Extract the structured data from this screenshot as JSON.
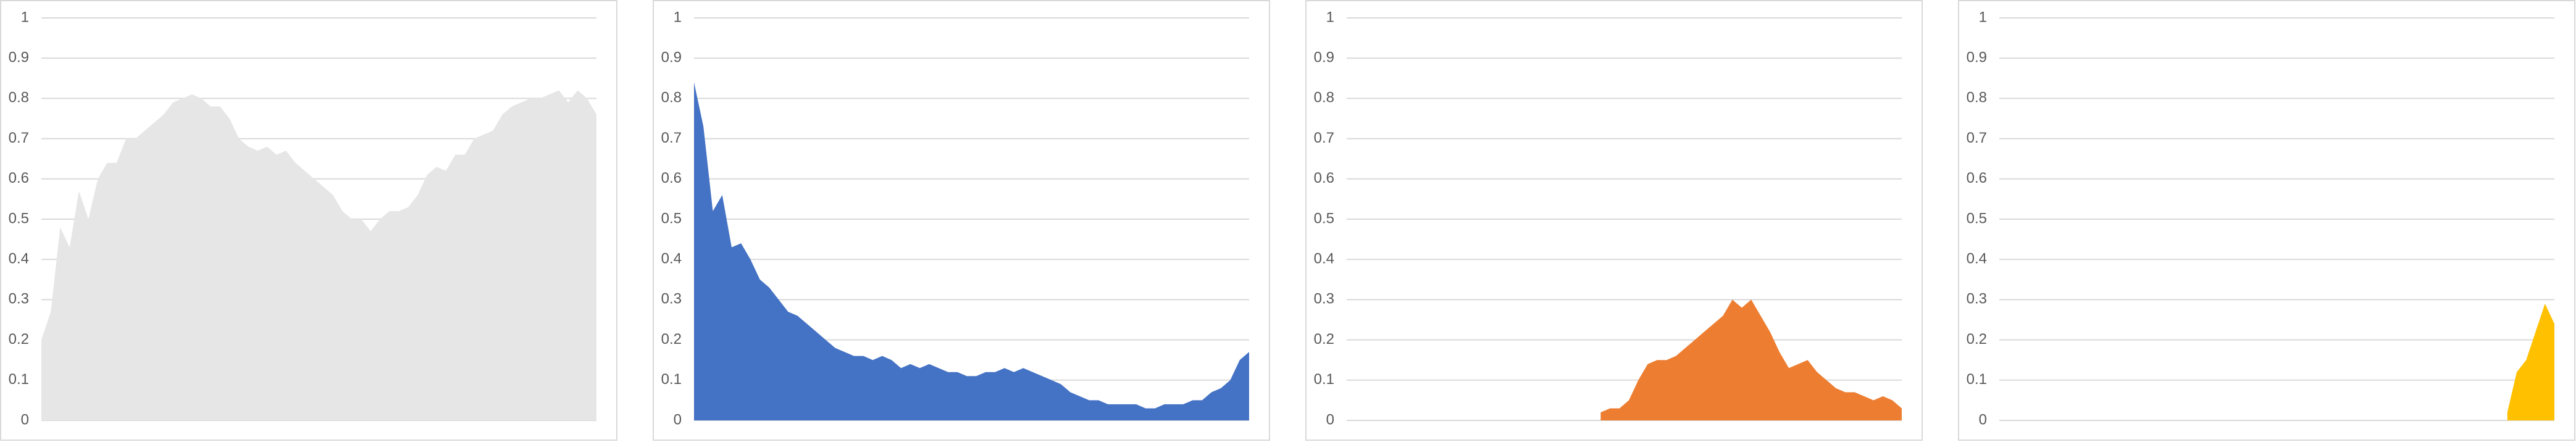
{
  "chart_data": [
    {
      "type": "area",
      "color": "#e7e6e6",
      "ylim": [
        0,
        1
      ],
      "yticks": [
        0,
        0.1,
        0.2,
        0.3,
        0.4,
        0.5,
        0.6,
        0.7,
        0.8,
        0.9,
        1
      ],
      "grid": true,
      "values": [
        0.2,
        0.27,
        0.48,
        0.43,
        0.57,
        0.5,
        0.6,
        0.64,
        0.64,
        0.7,
        0.7,
        0.72,
        0.74,
        0.76,
        0.79,
        0.8,
        0.81,
        0.8,
        0.78,
        0.78,
        0.75,
        0.7,
        0.68,
        0.67,
        0.68,
        0.66,
        0.67,
        0.64,
        0.62,
        0.6,
        0.58,
        0.56,
        0.52,
        0.5,
        0.5,
        0.47,
        0.5,
        0.52,
        0.52,
        0.53,
        0.56,
        0.61,
        0.63,
        0.62,
        0.66,
        0.66,
        0.7,
        0.71,
        0.72,
        0.76,
        0.78,
        0.79,
        0.8,
        0.8,
        0.81,
        0.82,
        0.79,
        0.82,
        0.8,
        0.76
      ]
    },
    {
      "type": "area",
      "color": "#4472c4",
      "ylim": [
        0,
        1
      ],
      "yticks": [
        0,
        0.1,
        0.2,
        0.3,
        0.4,
        0.5,
        0.6,
        0.7,
        0.8,
        0.9,
        1
      ],
      "grid": true,
      "values": [
        0.84,
        0.73,
        0.52,
        0.56,
        0.43,
        0.44,
        0.4,
        0.35,
        0.33,
        0.3,
        0.27,
        0.26,
        0.24,
        0.22,
        0.2,
        0.18,
        0.17,
        0.16,
        0.16,
        0.15,
        0.16,
        0.15,
        0.13,
        0.14,
        0.13,
        0.14,
        0.13,
        0.12,
        0.12,
        0.11,
        0.11,
        0.12,
        0.12,
        0.13,
        0.12,
        0.13,
        0.12,
        0.11,
        0.1,
        0.09,
        0.07,
        0.06,
        0.05,
        0.05,
        0.04,
        0.04,
        0.04,
        0.04,
        0.03,
        0.03,
        0.04,
        0.04,
        0.04,
        0.05,
        0.05,
        0.07,
        0.08,
        0.1,
        0.15,
        0.17
      ]
    },
    {
      "type": "area",
      "color": "#ed7d31",
      "ylim": [
        0,
        1
      ],
      "yticks": [
        0,
        0.1,
        0.2,
        0.3,
        0.4,
        0.5,
        0.6,
        0.7,
        0.8,
        0.9,
        1
      ],
      "grid": true,
      "values": [
        null,
        null,
        null,
        null,
        null,
        null,
        null,
        null,
        null,
        null,
        null,
        null,
        null,
        null,
        null,
        null,
        null,
        null,
        null,
        null,
        null,
        null,
        null,
        null,
        null,
        null,
        null,
        0.02,
        0.03,
        0.03,
        0.05,
        0.1,
        0.14,
        0.15,
        0.15,
        0.16,
        0.18,
        0.2,
        0.22,
        0.24,
        0.26,
        0.3,
        0.28,
        0.3,
        0.26,
        0.22,
        0.17,
        0.13,
        0.14,
        0.15,
        0.12,
        0.1,
        0.08,
        0.07,
        0.07,
        0.06,
        0.05,
        0.06,
        0.05,
        0.03
      ]
    },
    {
      "type": "area",
      "color": "#ffc000",
      "ylim": [
        0,
        1
      ],
      "yticks": [
        0,
        0.1,
        0.2,
        0.3,
        0.4,
        0.5,
        0.6,
        0.7,
        0.8,
        0.9,
        1
      ],
      "grid": true,
      "values": [
        null,
        null,
        null,
        null,
        null,
        null,
        null,
        null,
        null,
        null,
        null,
        null,
        null,
        null,
        null,
        null,
        null,
        null,
        null,
        null,
        null,
        null,
        null,
        null,
        null,
        null,
        null,
        null,
        null,
        null,
        null,
        null,
        null,
        null,
        null,
        null,
        null,
        null,
        null,
        null,
        null,
        null,
        null,
        null,
        null,
        null,
        null,
        null,
        null,
        null,
        null,
        null,
        null,
        null,
        0.02,
        0.12,
        0.15,
        0.22,
        0.29,
        0.24
      ]
    }
  ]
}
